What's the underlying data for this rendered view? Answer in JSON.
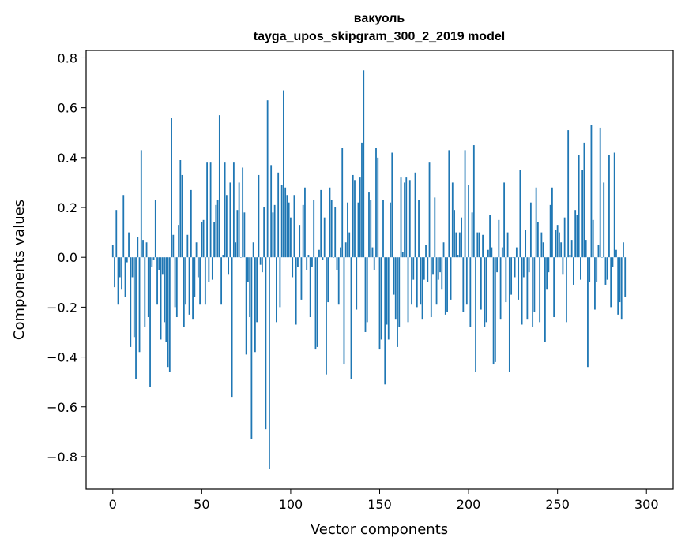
{
  "chart_data": {
    "type": "bar",
    "title": "вакуоль",
    "subtitle": "tayga_upos_skipgram_300_2_2019 model",
    "xlabel": "Vector components",
    "ylabel": "Components values",
    "xlim": [
      -15,
      315
    ],
    "ylim": [
      -0.93,
      0.83
    ],
    "xticks": [
      0,
      50,
      100,
      150,
      200,
      250,
      300
    ],
    "yticks": [
      -0.8,
      -0.6,
      -0.4,
      -0.2,
      0.0,
      0.2,
      0.4,
      0.6,
      0.8
    ],
    "ytick_labels": [
      "−0.8",
      "−0.6",
      "−0.4",
      "−0.2",
      "0.0",
      "0.2",
      "0.4",
      "0.6",
      "0.8"
    ],
    "bar_color": "#1f77b4",
    "values": [
      0.05,
      -0.12,
      0.19,
      -0.19,
      -0.08,
      -0.13,
      0.25,
      -0.16,
      -0.02,
      0.1,
      -0.36,
      -0.08,
      -0.32,
      -0.49,
      0.08,
      -0.38,
      0.43,
      0.07,
      -0.28,
      0.06,
      -0.24,
      -0.52,
      -0.04,
      -0.01,
      0.23,
      -0.19,
      -0.05,
      -0.33,
      -0.07,
      -0.26,
      -0.34,
      -0.44,
      -0.46,
      0.56,
      0.09,
      -0.2,
      -0.24,
      0.13,
      0.39,
      0.33,
      -0.28,
      -0.19,
      0.09,
      -0.23,
      0.27,
      -0.25,
      -0.16,
      0.06,
      -0.08,
      -0.19,
      0.14,
      0.15,
      -0.19,
      0.38,
      -0.1,
      0.38,
      -0.09,
      0.14,
      0.21,
      0.23,
      0.57,
      -0.19,
      0.01,
      0.38,
      0.25,
      -0.07,
      0.3,
      -0.56,
      0.38,
      0.06,
      0.19,
      0.3,
      0.0,
      0.36,
      0.18,
      -0.39,
      -0.1,
      -0.24,
      -0.73,
      0.06,
      -0.38,
      -0.26,
      0.33,
      -0.03,
      -0.06,
      0.2,
      -0.69,
      0.63,
      -0.85,
      0.37,
      0.18,
      0.21,
      -0.26,
      0.34,
      -0.2,
      0.29,
      0.67,
      0.28,
      0.25,
      0.22,
      0.16,
      -0.08,
      0.25,
      -0.27,
      -0.04,
      0.13,
      -0.17,
      0.21,
      0.28,
      -0.05,
      0.01,
      -0.24,
      -0.04,
      0.23,
      -0.37,
      -0.36,
      0.03,
      0.27,
      -0.01,
      0.16,
      -0.47,
      -0.18,
      0.28,
      0.23,
      0.0,
      0.2,
      -0.05,
      -0.19,
      0.04,
      0.44,
      -0.43,
      0.06,
      0.22,
      0.1,
      -0.49,
      0.33,
      0.31,
      -0.21,
      0.22,
      0.32,
      0.46,
      0.75,
      -0.3,
      -0.26,
      0.26,
      0.23,
      0.04,
      -0.05,
      0.44,
      0.4,
      -0.37,
      -0.33,
      0.23,
      -0.51,
      -0.27,
      -0.33,
      0.22,
      0.42,
      -0.15,
      -0.25,
      -0.36,
      -0.28,
      0.32,
      0.02,
      0.3,
      0.32,
      -0.26,
      0.31,
      -0.19,
      -0.09,
      0.34,
      -0.2,
      0.23,
      -0.19,
      -0.25,
      -0.09,
      0.05,
      -0.1,
      0.38,
      -0.24,
      -0.07,
      0.24,
      -0.19,
      -0.09,
      -0.06,
      -0.13,
      0.06,
      -0.23,
      -0.22,
      0.43,
      -0.17,
      0.3,
      0.19,
      0.1,
      0.01,
      0.1,
      0.16,
      -0.22,
      0.43,
      -0.19,
      0.29,
      -0.28,
      0.18,
      0.45,
      -0.46,
      0.1,
      0.1,
      -0.21,
      0.09,
      -0.28,
      -0.26,
      0.03,
      0.17,
      0.04,
      -0.43,
      -0.42,
      -0.06,
      0.15,
      -0.25,
      0.04,
      0.3,
      -0.18,
      0.1,
      -0.46,
      -0.15,
      0.0,
      -0.08,
      0.04,
      -0.17,
      0.35,
      -0.27,
      -0.08,
      0.11,
      -0.25,
      -0.06,
      0.22,
      -0.28,
      -0.22,
      0.28,
      0.14,
      -0.26,
      0.1,
      0.06,
      -0.34,
      -0.13,
      -0.06,
      0.21,
      0.28,
      -0.24,
      0.11,
      0.13,
      0.1,
      0.06,
      -0.07,
      0.16,
      -0.26,
      0.51,
      0.01,
      0.07,
      -0.11,
      0.19,
      0.17,
      0.41,
      -0.09,
      0.35,
      0.46,
      0.07,
      -0.44,
      -0.1,
      0.53,
      0.15,
      -0.21,
      -0.1,
      0.05,
      0.52,
      0.0,
      0.3,
      -0.11,
      -0.09,
      0.41,
      -0.2,
      -0.04,
      0.42,
      0.03,
      -0.23,
      -0.18,
      -0.25,
      0.06,
      -0.16
    ]
  }
}
